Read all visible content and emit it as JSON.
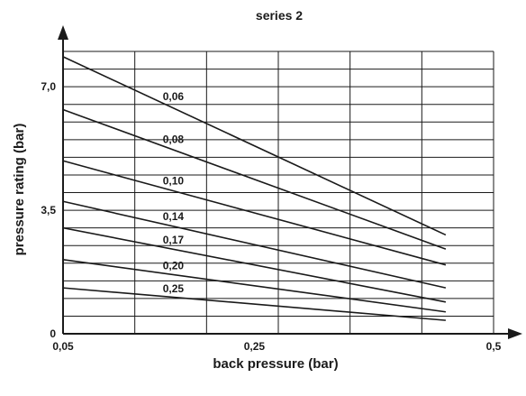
{
  "chart_data": {
    "type": "line",
    "title": "series 2",
    "xlabel": "back pressure (bar)",
    "ylabel": "pressure rating (bar)",
    "xlim": [
      0.05,
      0.5
    ],
    "ylim": [
      0,
      8
    ],
    "x_ticks": [
      {
        "value": 0.05,
        "label": "0,05"
      },
      {
        "value": 0.25,
        "label": "0,25"
      },
      {
        "value": 0.5,
        "label": "0,5"
      }
    ],
    "y_ticks": [
      {
        "value": 0,
        "label": "0"
      },
      {
        "value": 3.5,
        "label": "3,5"
      },
      {
        "value": 7.0,
        "label": "7,0"
      }
    ],
    "grid": true,
    "series": [
      {
        "name": "0,06",
        "x": [
          0.05,
          0.45
        ],
        "y": [
          7.85,
          2.8
        ]
      },
      {
        "name": "0,08",
        "x": [
          0.05,
          0.45
        ],
        "y": [
          6.35,
          2.4
        ]
      },
      {
        "name": "0,10",
        "x": [
          0.05,
          0.45
        ],
        "y": [
          4.9,
          1.95
        ]
      },
      {
        "name": "0,14",
        "x": [
          0.05,
          0.45
        ],
        "y": [
          3.75,
          1.3
        ]
      },
      {
        "name": "0,17",
        "x": [
          0.05,
          0.45
        ],
        "y": [
          3.0,
          0.9
        ]
      },
      {
        "name": "0,20",
        "x": [
          0.05,
          0.45
        ],
        "y": [
          2.1,
          0.62
        ]
      },
      {
        "name": "0,25",
        "x": [
          0.05,
          0.45
        ],
        "y": [
          1.3,
          0.38
        ]
      }
    ]
  }
}
